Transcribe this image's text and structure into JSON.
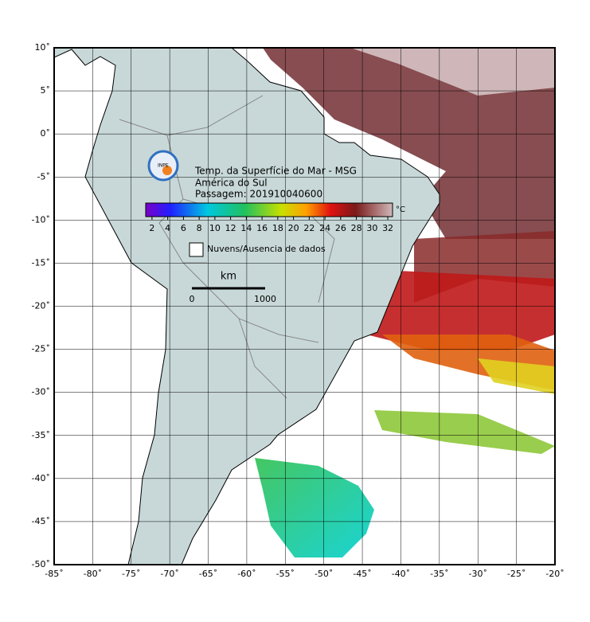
{
  "map": {
    "title_lines": [
      "Temp. da Superfície do Mar - MSG",
      "América do Sul",
      "Passagem: 201910040600"
    ],
    "logo_text": "INPE",
    "lonlim": [
      -85,
      -20
    ],
    "latlim": [
      -50,
      10
    ],
    "lonticks": [
      {
        "value": -85,
        "label": "-85˚"
      },
      {
        "value": -80,
        "label": "-80˚"
      },
      {
        "value": -75,
        "label": "-75˚"
      },
      {
        "value": -70,
        "label": "-70˚"
      },
      {
        "value": -65,
        "label": "-65˚"
      },
      {
        "value": -60,
        "label": "-60˚"
      },
      {
        "value": -55,
        "label": "-55˚"
      },
      {
        "value": -50,
        "label": "-50˚"
      },
      {
        "value": -45,
        "label": "-45˚"
      },
      {
        "value": -40,
        "label": "-40˚"
      },
      {
        "value": -35,
        "label": "-35˚"
      },
      {
        "value": -30,
        "label": "-30˚"
      },
      {
        "value": -25,
        "label": "-25˚"
      },
      {
        "value": -20,
        "label": "-20˚"
      }
    ],
    "latticks": [
      {
        "value": 10,
        "label": "10˚"
      },
      {
        "value": 5,
        "label": "5˚"
      },
      {
        "value": 0,
        "label": "0˚"
      },
      {
        "value": -5,
        "label": "-5˚"
      },
      {
        "value": -10,
        "label": "-10˚"
      },
      {
        "value": -15,
        "label": "-15˚"
      },
      {
        "value": -20,
        "label": "-20˚"
      },
      {
        "value": -25,
        "label": "-25˚"
      },
      {
        "value": -30,
        "label": "-30˚"
      },
      {
        "value": -35,
        "label": "-35˚"
      },
      {
        "value": -40,
        "label": "-40˚"
      },
      {
        "value": -45,
        "label": "-45˚"
      },
      {
        "value": -50,
        "label": "-50˚"
      }
    ],
    "grid": true,
    "colorbar": {
      "lim": [
        1.2,
        32.6
      ],
      "ticks": [
        2,
        4,
        6,
        8,
        10,
        12,
        14,
        16,
        18,
        20,
        22,
        24,
        26,
        28,
        30,
        32
      ],
      "unit": "°C"
    },
    "legend": "Nuvens/Ausencia de dados",
    "scale_bar": {
      "unit": "km",
      "ticks": [
        0,
        1000
      ]
    }
  }
}
